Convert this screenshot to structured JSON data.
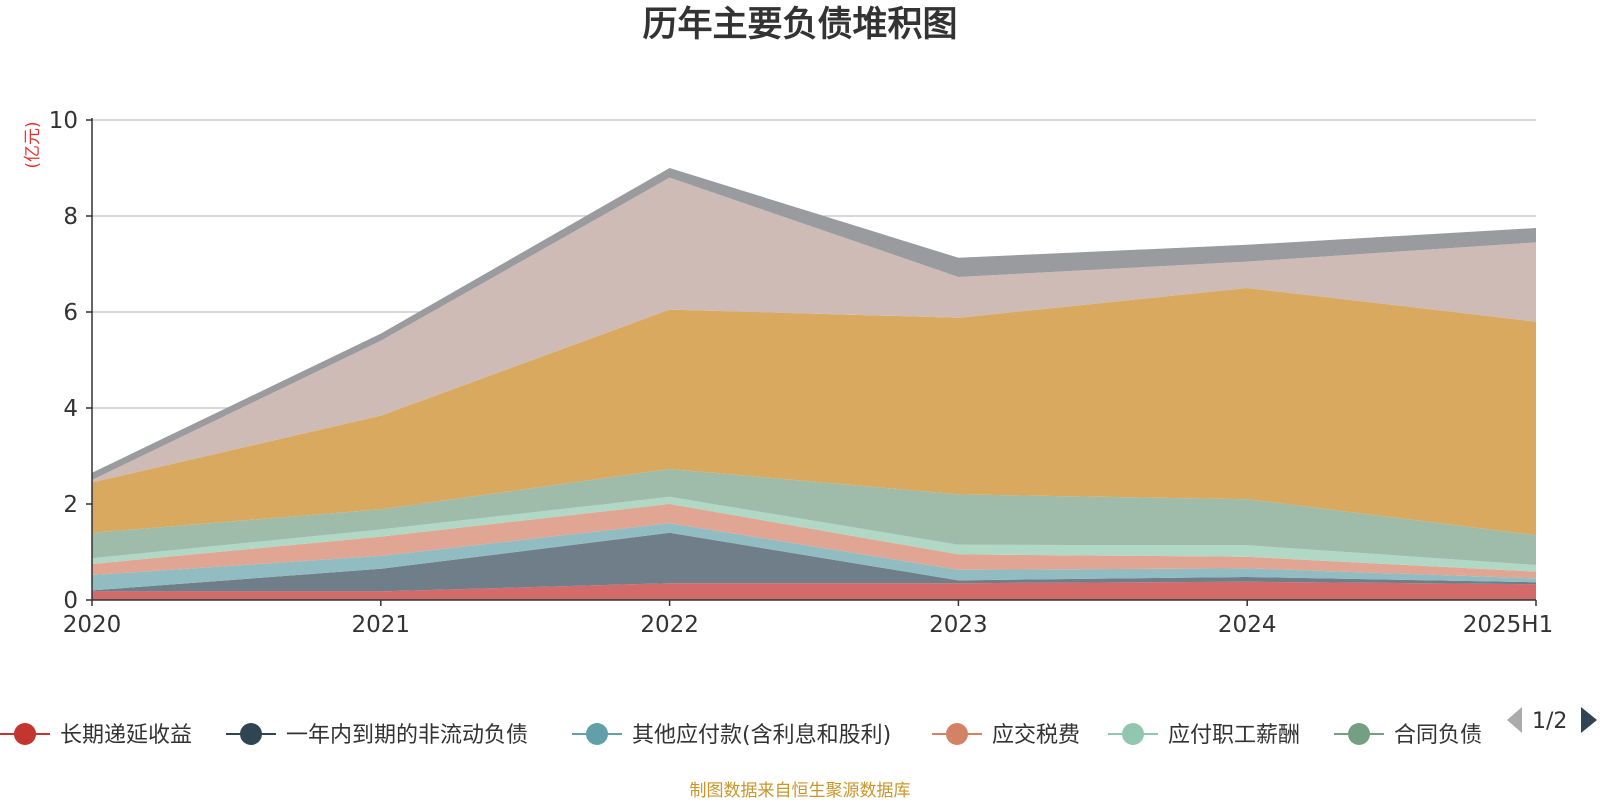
{
  "chart_data": {
    "type": "area",
    "title": "历年主要负债堆积图",
    "unit_label": "(亿元)",
    "source_note": "制图数据来自恒生聚源数据库",
    "categories": [
      "2020",
      "2021",
      "2022",
      "2023",
      "2024",
      "2025H1"
    ],
    "ylim": [
      0,
      10
    ],
    "yticks": [
      0,
      2,
      4,
      6,
      8,
      10
    ],
    "grid": true,
    "stacked": true,
    "legend_position": "bottom",
    "legend_page": "1/2",
    "series": [
      {
        "name": "长期递延收益",
        "color": "#c23531",
        "fill": "#d46b6b",
        "values": [
          0.18,
          0.18,
          0.35,
          0.35,
          0.38,
          0.33
        ]
      },
      {
        "name": "一年内到期的非流动负债",
        "color": "#2f4554",
        "fill": "#6f7e89",
        "values": [
          0.02,
          0.47,
          1.05,
          0.06,
          0.1,
          0.04
        ]
      },
      {
        "name": "其他应付款(含利息和股利)",
        "color": "#61a0a8",
        "fill": "#90bcc2",
        "values": [
          0.32,
          0.27,
          0.2,
          0.22,
          0.18,
          0.08
        ]
      },
      {
        "name": "应交税费",
        "color": "#d48265",
        "fill": "#e0a593",
        "values": [
          0.23,
          0.4,
          0.4,
          0.32,
          0.24,
          0.14
        ]
      },
      {
        "name": "应付职工薪酬",
        "color": "#91c7ae",
        "fill": "#b0d8c5",
        "values": [
          0.12,
          0.15,
          0.15,
          0.2,
          0.24,
          0.14
        ]
      },
      {
        "name": "合同负债",
        "color": "#749f83",
        "fill": "#9fbcaa",
        "values": [
          0.53,
          0.42,
          0.58,
          1.05,
          0.96,
          0.62
        ]
      },
      {
        "name": "",
        "color": "#ca8622",
        "fill": "#d9a95f",
        "values": [
          1.05,
          1.95,
          3.32,
          3.68,
          4.4,
          4.45
        ]
      },
      {
        "name": "",
        "color": "#bda29a",
        "fill": "#cfbbb5",
        "values": [
          0.05,
          1.56,
          2.75,
          0.85,
          0.55,
          1.65
        ]
      },
      {
        "name": "",
        "color": "#6e7074",
        "fill": "#9a9b9f",
        "values": [
          0.15,
          0.15,
          0.2,
          0.4,
          0.35,
          0.3
        ]
      }
    ]
  }
}
